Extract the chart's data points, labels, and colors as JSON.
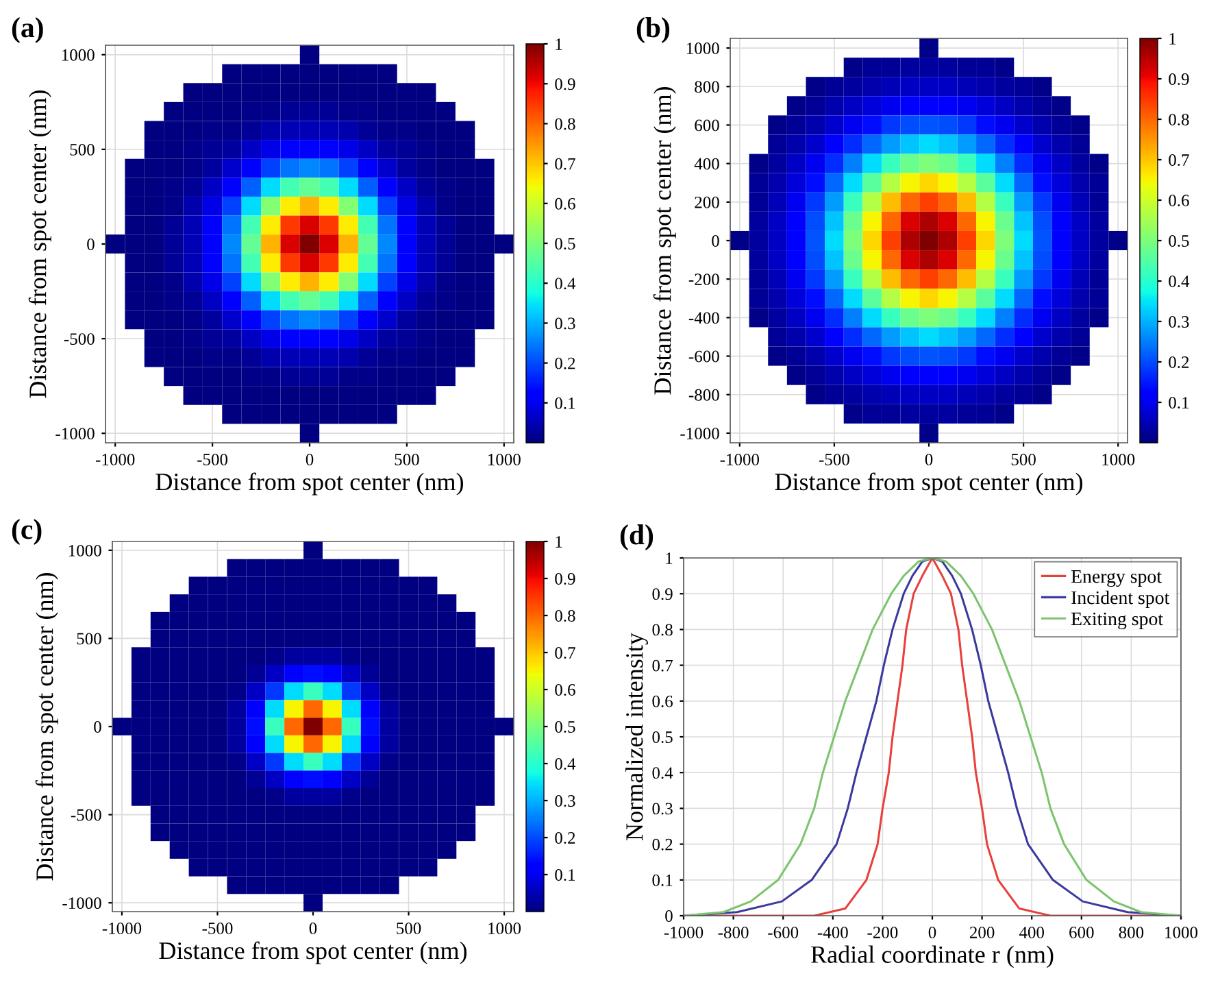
{
  "chart_data": [
    {
      "type": "heatmap",
      "title": "(a)",
      "xlabel": "Distance from spot center (nm)",
      "ylabel": "Distance from spot center (nm)",
      "categories": [
        "-1000",
        null,
        null,
        null,
        null,
        "-500",
        null,
        null,
        null,
        null,
        "0",
        null,
        null,
        null,
        null,
        "500",
        null,
        null,
        null,
        null,
        "1000"
      ],
      "y_categories": [
        "1000",
        null,
        null,
        null,
        null,
        "500",
        null,
        null,
        null,
        null,
        "0",
        null,
        null,
        null,
        null,
        "-500",
        null,
        null,
        null,
        null,
        "-1000"
      ],
      "clim": [
        0,
        1
      ],
      "cticks": [
        0.1,
        0.2,
        0.3,
        0.4,
        0.5,
        0.6,
        0.7,
        0.8,
        0.9,
        1
      ],
      "grid": true,
      "cells": [
        [
          null,
          null,
          null,
          null,
          null,
          null,
          null,
          null,
          null,
          null,
          0,
          null,
          null,
          null,
          null,
          null,
          null,
          null,
          null,
          null,
          null
        ],
        [
          null,
          null,
          null,
          null,
          null,
          null,
          0,
          0,
          0,
          0,
          0,
          0,
          0,
          0,
          0,
          null,
          null,
          null,
          null,
          null,
          null
        ],
        [
          null,
          null,
          null,
          null,
          0,
          0,
          0,
          0,
          0,
          0,
          0,
          0,
          0,
          0,
          0,
          0,
          0,
          null,
          null,
          null,
          null
        ],
        [
          null,
          null,
          null,
          0,
          0,
          0,
          0,
          0.01,
          0.01,
          0.02,
          0.02,
          0.02,
          0.01,
          0.01,
          0,
          0,
          0,
          0,
          null,
          null,
          null
        ],
        [
          null,
          null,
          0,
          0,
          0,
          0.01,
          0.01,
          0.02,
          0.04,
          0.05,
          0.05,
          0.05,
          0.04,
          0.02,
          0.01,
          0.01,
          0,
          0,
          0,
          null,
          null
        ],
        [
          null,
          null,
          0,
          0,
          0.01,
          0.02,
          0.03,
          0.06,
          0.09,
          0.11,
          0.12,
          0.11,
          0.09,
          0.06,
          0.03,
          0.02,
          0.01,
          0,
          0,
          null,
          null
        ],
        [
          null,
          0,
          0,
          0,
          0.01,
          0.03,
          0.07,
          0.12,
          0.19,
          0.24,
          0.26,
          0.24,
          0.19,
          0.12,
          0.07,
          0.03,
          0.01,
          0,
          0,
          0,
          null
        ],
        [
          null,
          0,
          0,
          0.01,
          0.02,
          0.06,
          0.12,
          0.22,
          0.34,
          0.43,
          0.47,
          0.43,
          0.34,
          0.22,
          0.12,
          0.06,
          0.02,
          0.01,
          0,
          0,
          null
        ],
        [
          null,
          0,
          0,
          0.01,
          0.04,
          0.09,
          0.19,
          0.34,
          0.51,
          0.66,
          0.72,
          0.66,
          0.51,
          0.34,
          0.19,
          0.09,
          0.04,
          0.01,
          0,
          0,
          null
        ],
        [
          null,
          0,
          0,
          0.02,
          0.05,
          0.11,
          0.24,
          0.43,
          0.66,
          0.85,
          0.92,
          0.85,
          0.66,
          0.43,
          0.24,
          0.11,
          0.05,
          0.02,
          0,
          0,
          null
        ],
        [
          0,
          0,
          0,
          0.02,
          0.05,
          0.12,
          0.26,
          0.47,
          0.72,
          0.92,
          1,
          0.92,
          0.72,
          0.47,
          0.26,
          0.12,
          0.05,
          0.02,
          0,
          0,
          0
        ],
        [
          null,
          0,
          0,
          0.02,
          0.05,
          0.11,
          0.24,
          0.43,
          0.66,
          0.85,
          0.92,
          0.85,
          0.66,
          0.43,
          0.24,
          0.11,
          0.05,
          0.02,
          0,
          0,
          null
        ],
        [
          null,
          0,
          0,
          0.01,
          0.04,
          0.09,
          0.19,
          0.34,
          0.51,
          0.66,
          0.72,
          0.66,
          0.51,
          0.34,
          0.19,
          0.09,
          0.04,
          0.01,
          0,
          0,
          null
        ],
        [
          null,
          0,
          0,
          0.01,
          0.02,
          0.06,
          0.12,
          0.22,
          0.34,
          0.43,
          0.47,
          0.43,
          0.34,
          0.22,
          0.12,
          0.06,
          0.02,
          0.01,
          0,
          0,
          null
        ],
        [
          null,
          0,
          0,
          0,
          0.01,
          0.03,
          0.07,
          0.12,
          0.19,
          0.24,
          0.26,
          0.24,
          0.19,
          0.12,
          0.07,
          0.03,
          0.01,
          0,
          0,
          0,
          null
        ],
        [
          null,
          null,
          0,
          0,
          0.01,
          0.02,
          0.03,
          0.06,
          0.09,
          0.11,
          0.12,
          0.11,
          0.09,
          0.06,
          0.03,
          0.02,
          0.01,
          0,
          0,
          null,
          null
        ],
        [
          null,
          null,
          0,
          0,
          0,
          0.01,
          0.01,
          0.02,
          0.04,
          0.05,
          0.05,
          0.05,
          0.04,
          0.02,
          0.01,
          0.01,
          0,
          0,
          0,
          null,
          null
        ],
        [
          null,
          null,
          null,
          0,
          0,
          0,
          0,
          0.01,
          0.01,
          0.02,
          0.02,
          0.02,
          0.01,
          0.01,
          0,
          0,
          0,
          0,
          null,
          null,
          null
        ],
        [
          null,
          null,
          null,
          null,
          0,
          0,
          0,
          0,
          0,
          0,
          0,
          0,
          0,
          0,
          0,
          0,
          0,
          null,
          null,
          null,
          null
        ],
        [
          null,
          null,
          null,
          null,
          null,
          null,
          0,
          0,
          0,
          0,
          0,
          0,
          0,
          0,
          0,
          null,
          null,
          null,
          null,
          null,
          null
        ],
        [
          null,
          null,
          null,
          null,
          null,
          null,
          null,
          null,
          null,
          null,
          0,
          null,
          null,
          null,
          null,
          null,
          null,
          null,
          null,
          null,
          null
        ]
      ]
    },
    {
      "type": "heatmap",
      "title": "(b)",
      "xlabel": "Distance from spot center (nm)",
      "ylabel": "Distance from spot center (nm)",
      "categories": [
        "-1000",
        null,
        null,
        null,
        null,
        "-500",
        null,
        null,
        null,
        null,
        "0",
        null,
        null,
        null,
        null,
        "500",
        null,
        null,
        null,
        null,
        "1000"
      ],
      "y_categories": [
        "1000",
        null,
        "800",
        null,
        "600",
        null,
        "400",
        null,
        "200",
        null,
        "0",
        null,
        "-200",
        null,
        "-400",
        null,
        "-600",
        null,
        "-800",
        null,
        "-1000"
      ],
      "clim": [
        0,
        1
      ],
      "cticks": [
        0.1,
        0.2,
        0.3,
        0.4,
        0.5,
        0.6,
        0.7,
        0.8,
        0.9,
        1
      ],
      "grid": true,
      "cells": [
        [
          null,
          null,
          null,
          null,
          null,
          null,
          null,
          null,
          null,
          null,
          0.01,
          null,
          null,
          null,
          null,
          null,
          null,
          null,
          null,
          null,
          null
        ],
        [
          null,
          null,
          null,
          null,
          null,
          null,
          0.01,
          0.02,
          0.02,
          0.03,
          0.03,
          0.03,
          0.02,
          0.02,
          0.01,
          null,
          null,
          null,
          null,
          null,
          null
        ],
        [
          null,
          null,
          null,
          null,
          0.01,
          0.02,
          0.03,
          0.04,
          0.05,
          0.06,
          0.06,
          0.06,
          0.05,
          0.04,
          0.03,
          0.02,
          0.01,
          null,
          null,
          null,
          null
        ],
        [
          null,
          null,
          null,
          0.01,
          0.02,
          0.04,
          0.06,
          0.08,
          0.1,
          0.11,
          0.12,
          0.11,
          0.1,
          0.08,
          0.06,
          0.04,
          0.02,
          0.01,
          null,
          null,
          null
        ],
        [
          null,
          null,
          0.01,
          0.02,
          0.04,
          0.07,
          0.1,
          0.14,
          0.18,
          0.2,
          0.21,
          0.2,
          0.18,
          0.14,
          0.1,
          0.07,
          0.04,
          0.02,
          0.01,
          null,
          null
        ],
        [
          null,
          null,
          0.02,
          0.04,
          0.07,
          0.11,
          0.17,
          0.23,
          0.28,
          0.32,
          0.34,
          0.32,
          0.28,
          0.23,
          0.17,
          0.11,
          0.07,
          0.04,
          0.02,
          null,
          null
        ],
        [
          null,
          0.01,
          0.03,
          0.06,
          0.1,
          0.17,
          0.25,
          0.34,
          0.42,
          0.48,
          0.5,
          0.48,
          0.42,
          0.34,
          0.25,
          0.17,
          0.1,
          0.06,
          0.03,
          0.01,
          null
        ],
        [
          null,
          0.02,
          0.04,
          0.08,
          0.14,
          0.23,
          0.34,
          0.46,
          0.57,
          0.65,
          0.68,
          0.65,
          0.57,
          0.46,
          0.34,
          0.23,
          0.14,
          0.08,
          0.04,
          0.02,
          null
        ],
        [
          null,
          0.02,
          0.05,
          0.1,
          0.18,
          0.28,
          0.42,
          0.57,
          0.71,
          0.8,
          0.84,
          0.8,
          0.71,
          0.57,
          0.42,
          0.28,
          0.18,
          0.1,
          0.05,
          0.02,
          null
        ],
        [
          null,
          0.03,
          0.06,
          0.11,
          0.2,
          0.32,
          0.48,
          0.65,
          0.8,
          0.92,
          0.96,
          0.92,
          0.8,
          0.65,
          0.48,
          0.32,
          0.2,
          0.11,
          0.06,
          0.03,
          null
        ],
        [
          0.01,
          0.03,
          0.06,
          0.12,
          0.21,
          0.34,
          0.5,
          0.68,
          0.84,
          0.96,
          1,
          0.96,
          0.84,
          0.68,
          0.5,
          0.34,
          0.21,
          0.12,
          0.06,
          0.03,
          0.01
        ],
        [
          null,
          0.03,
          0.06,
          0.11,
          0.2,
          0.32,
          0.48,
          0.65,
          0.8,
          0.92,
          0.96,
          0.92,
          0.8,
          0.65,
          0.48,
          0.32,
          0.2,
          0.11,
          0.06,
          0.03,
          null
        ],
        [
          null,
          0.02,
          0.05,
          0.1,
          0.18,
          0.28,
          0.42,
          0.57,
          0.71,
          0.8,
          0.84,
          0.8,
          0.71,
          0.57,
          0.42,
          0.28,
          0.18,
          0.1,
          0.05,
          0.02,
          null
        ],
        [
          null,
          0.02,
          0.04,
          0.08,
          0.14,
          0.23,
          0.34,
          0.46,
          0.57,
          0.65,
          0.68,
          0.65,
          0.57,
          0.46,
          0.34,
          0.23,
          0.14,
          0.08,
          0.04,
          0.02,
          null
        ],
        [
          null,
          0.01,
          0.03,
          0.06,
          0.1,
          0.17,
          0.25,
          0.34,
          0.42,
          0.48,
          0.5,
          0.48,
          0.42,
          0.34,
          0.25,
          0.17,
          0.1,
          0.06,
          0.03,
          0.01,
          null
        ],
        [
          null,
          null,
          0.02,
          0.04,
          0.07,
          0.11,
          0.17,
          0.23,
          0.28,
          0.32,
          0.34,
          0.32,
          0.28,
          0.23,
          0.17,
          0.11,
          0.07,
          0.04,
          0.02,
          null,
          null
        ],
        [
          null,
          null,
          0.01,
          0.02,
          0.04,
          0.07,
          0.1,
          0.14,
          0.18,
          0.2,
          0.21,
          0.2,
          0.18,
          0.14,
          0.1,
          0.07,
          0.04,
          0.02,
          0.01,
          null,
          null
        ],
        [
          null,
          null,
          null,
          0.01,
          0.02,
          0.04,
          0.06,
          0.08,
          0.1,
          0.11,
          0.12,
          0.11,
          0.1,
          0.08,
          0.06,
          0.04,
          0.02,
          0.01,
          null,
          null,
          null
        ],
        [
          null,
          null,
          null,
          null,
          0.01,
          0.02,
          0.03,
          0.04,
          0.05,
          0.06,
          0.06,
          0.06,
          0.05,
          0.04,
          0.03,
          0.02,
          0.01,
          null,
          null,
          null,
          null
        ],
        [
          null,
          null,
          null,
          null,
          null,
          null,
          0.01,
          0.02,
          0.02,
          0.03,
          0.03,
          0.03,
          0.02,
          0.02,
          0.01,
          null,
          null,
          null,
          null,
          null,
          null
        ],
        [
          null,
          null,
          null,
          null,
          null,
          null,
          null,
          null,
          null,
          null,
          0.01,
          null,
          null,
          null,
          null,
          null,
          null,
          null,
          null,
          null,
          null
        ]
      ]
    },
    {
      "type": "heatmap",
      "title": "(c)",
      "xlabel": "Distance from spot center (nm)",
      "ylabel": "Distance from spot center (nm)",
      "categories": [
        "-1000",
        null,
        null,
        null,
        null,
        "-500",
        null,
        null,
        null,
        null,
        "0",
        null,
        null,
        null,
        null,
        "500",
        null,
        null,
        null,
        null,
        "1000"
      ],
      "y_categories": [
        "1000",
        null,
        null,
        null,
        null,
        "500",
        null,
        null,
        null,
        null,
        "0",
        null,
        null,
        null,
        null,
        "-500",
        null,
        null,
        null,
        null,
        "-1000"
      ],
      "clim": [
        0,
        1
      ],
      "cticks": [
        0.1,
        0.2,
        0.3,
        0.4,
        0.5,
        0.6,
        0.7,
        0.8,
        0.9,
        1
      ],
      "grid": true,
      "cells": [
        [
          null,
          null,
          null,
          null,
          null,
          null,
          null,
          null,
          null,
          null,
          0,
          null,
          null,
          null,
          null,
          null,
          null,
          null,
          null,
          null,
          null
        ],
        [
          null,
          null,
          null,
          null,
          null,
          null,
          0,
          0,
          0,
          0,
          0,
          0,
          0,
          0,
          0,
          null,
          null,
          null,
          null,
          null,
          null
        ],
        [
          null,
          null,
          null,
          null,
          0,
          0,
          0,
          0,
          0,
          0,
          0,
          0,
          0,
          0,
          0,
          0,
          0,
          null,
          null,
          null,
          null
        ],
        [
          null,
          null,
          null,
          0,
          0,
          0,
          0,
          0,
          0,
          0,
          0,
          0,
          0,
          0,
          0,
          0,
          0,
          0,
          null,
          null,
          null
        ],
        [
          null,
          null,
          0,
          0,
          0,
          0,
          0,
          0,
          0,
          0,
          0,
          0,
          0,
          0,
          0,
          0,
          0,
          0,
          0,
          null,
          null
        ],
        [
          null,
          null,
          0,
          0,
          0,
          0,
          0,
          0,
          0,
          0,
          0,
          0,
          0,
          0,
          0,
          0,
          0,
          0,
          0,
          null,
          null
        ],
        [
          null,
          0,
          0,
          0,
          0,
          0,
          0,
          0,
          0.01,
          0.03,
          0.03,
          0.03,
          0.01,
          0,
          0,
          0,
          0,
          0,
          0,
          0,
          null
        ],
        [
          null,
          0,
          0,
          0,
          0,
          0,
          0,
          0.02,
          0.06,
          0.11,
          0.14,
          0.11,
          0.06,
          0.02,
          0,
          0,
          0,
          0,
          0,
          0,
          null
        ],
        [
          null,
          0,
          0,
          0,
          0,
          0,
          0.01,
          0.06,
          0.18,
          0.34,
          0.42,
          0.34,
          0.18,
          0.06,
          0.01,
          0,
          0,
          0,
          0,
          0,
          null
        ],
        [
          null,
          0,
          0,
          0,
          0,
          0,
          0.03,
          0.11,
          0.34,
          0.65,
          0.8,
          0.65,
          0.34,
          0.11,
          0.03,
          0,
          0,
          0,
          0,
          0,
          null
        ],
        [
          0,
          0,
          0,
          0,
          0,
          0,
          0.03,
          0.14,
          0.42,
          0.8,
          1,
          0.8,
          0.42,
          0.14,
          0.03,
          0,
          0,
          0,
          0,
          0,
          0
        ],
        [
          null,
          0,
          0,
          0,
          0,
          0,
          0.03,
          0.11,
          0.34,
          0.65,
          0.8,
          0.65,
          0.34,
          0.11,
          0.03,
          0,
          0,
          0,
          0,
          0,
          null
        ],
        [
          null,
          0,
          0,
          0,
          0,
          0,
          0.01,
          0.06,
          0.18,
          0.34,
          0.42,
          0.34,
          0.18,
          0.06,
          0.01,
          0,
          0,
          0,
          0,
          0,
          null
        ],
        [
          null,
          0,
          0,
          0,
          0,
          0,
          0,
          0.02,
          0.06,
          0.11,
          0.14,
          0.11,
          0.06,
          0.02,
          0,
          0,
          0,
          0,
          0,
          0,
          null
        ],
        [
          null,
          0,
          0,
          0,
          0,
          0,
          0,
          0,
          0.01,
          0.03,
          0.03,
          0.03,
          0.01,
          0,
          0,
          0,
          0,
          0,
          0,
          0,
          null
        ],
        [
          null,
          null,
          0,
          0,
          0,
          0,
          0,
          0,
          0,
          0,
          0,
          0,
          0,
          0,
          0,
          0,
          0,
          0,
          0,
          null,
          null
        ],
        [
          null,
          null,
          0,
          0,
          0,
          0,
          0,
          0,
          0,
          0,
          0,
          0,
          0,
          0,
          0,
          0,
          0,
          0,
          0,
          null,
          null
        ],
        [
          null,
          null,
          null,
          0,
          0,
          0,
          0,
          0,
          0,
          0,
          0,
          0,
          0,
          0,
          0,
          0,
          0,
          0,
          null,
          null,
          null
        ],
        [
          null,
          null,
          null,
          null,
          0,
          0,
          0,
          0,
          0,
          0,
          0,
          0,
          0,
          0,
          0,
          0,
          0,
          null,
          null,
          null,
          null
        ],
        [
          null,
          null,
          null,
          null,
          null,
          null,
          0,
          0,
          0,
          0,
          0,
          0,
          0,
          0,
          0,
          null,
          null,
          null,
          null,
          null,
          null
        ],
        [
          null,
          null,
          null,
          null,
          null,
          null,
          null,
          null,
          null,
          null,
          0,
          null,
          null,
          null,
          null,
          null,
          null,
          null,
          null,
          null,
          null
        ]
      ]
    },
    {
      "type": "line",
      "title": "(d)",
      "xlabel": "Radial coordinate r (nm)",
      "ylabel": "Normalized intensity",
      "xlim": [
        -1000,
        1000
      ],
      "xticks": [
        -1000,
        -800,
        -600,
        -400,
        -200,
        0,
        200,
        400,
        600,
        800,
        1000
      ],
      "ylim": [
        0,
        1
      ],
      "yticks": [
        0,
        0.1,
        0.2,
        0.3,
        0.4,
        0.5,
        0.6,
        0.7,
        0.8,
        0.9,
        1
      ],
      "grid": true,
      "legend": "top right",
      "marker": "none",
      "line_style": "solid",
      "series": [
        {
          "name": "Energy spot",
          "color": "#e8403c",
          "x": [
            -1000,
            -475,
            -350,
            -265,
            -220,
            -200,
            -175,
            -160,
            -140,
            -120,
            -105,
            -75,
            -40,
            0,
            40,
            75,
            105,
            120,
            140,
            160,
            175,
            200,
            220,
            265,
            350,
            475,
            1000
          ],
          "values": [
            0,
            0,
            0.02,
            0.1,
            0.2,
            0.3,
            0.4,
            0.5,
            0.6,
            0.7,
            0.8,
            0.9,
            0.95,
            1,
            0.95,
            0.9,
            0.8,
            0.7,
            0.6,
            0.5,
            0.4,
            0.3,
            0.2,
            0.1,
            0.02,
            0,
            0
          ]
        },
        {
          "name": "Incident spot",
          "color": "#3a3a9e",
          "x": [
            -1000,
            -785,
            -605,
            -485,
            -385,
            -340,
            -305,
            -265,
            -225,
            -195,
            -160,
            -115,
            -80,
            -40,
            0,
            40,
            80,
            115,
            160,
            195,
            225,
            265,
            305,
            340,
            385,
            485,
            605,
            785,
            1000
          ],
          "values": [
            0,
            0.01,
            0.04,
            0.1,
            0.2,
            0.3,
            0.4,
            0.5,
            0.6,
            0.7,
            0.8,
            0.9,
            0.95,
            0.99,
            1,
            0.99,
            0.95,
            0.9,
            0.8,
            0.7,
            0.6,
            0.5,
            0.4,
            0.3,
            0.2,
            0.1,
            0.04,
            0.01,
            0
          ]
        },
        {
          "name": "Exiting spot",
          "color": "#7cc46e",
          "x": [
            -1000,
            -840,
            -730,
            -620,
            -530,
            -475,
            -440,
            -395,
            -350,
            -295,
            -240,
            -165,
            -115,
            -55,
            0,
            55,
            115,
            165,
            240,
            295,
            350,
            395,
            440,
            475,
            530,
            620,
            730,
            840,
            1000
          ],
          "values": [
            0,
            0.01,
            0.04,
            0.1,
            0.2,
            0.3,
            0.4,
            0.5,
            0.6,
            0.7,
            0.8,
            0.9,
            0.95,
            0.99,
            1,
            0.99,
            0.95,
            0.9,
            0.8,
            0.7,
            0.6,
            0.5,
            0.4,
            0.3,
            0.2,
            0.1,
            0.04,
            0.01,
            0
          ]
        }
      ]
    }
  ]
}
